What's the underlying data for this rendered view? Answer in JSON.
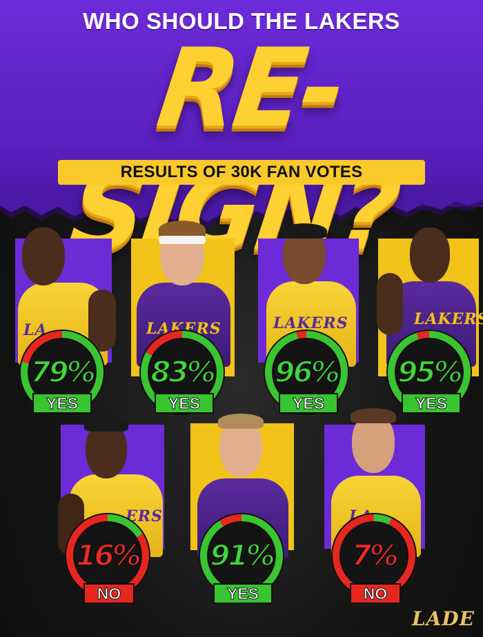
{
  "header": {
    "subtitle": "WHO SHOULD THE LAKERS",
    "headline": "RE-SIGN?",
    "results": "RESULTS OF 30K FAN VOTES"
  },
  "players": [
    {
      "percent": "79%",
      "verdict": "YES",
      "jersey_text": "LA"
    },
    {
      "percent": "83%",
      "verdict": "YES",
      "jersey_text": "LAKERS"
    },
    {
      "percent": "96%",
      "verdict": "YES",
      "jersey_text": "LAKERS"
    },
    {
      "percent": "95%",
      "verdict": "YES",
      "jersey_text": "LAKERS"
    },
    {
      "percent": "16%",
      "verdict": "NO",
      "jersey_text": "ERS"
    },
    {
      "percent": "91%",
      "verdict": "YES",
      "jersey_text": ""
    },
    {
      "percent": "7%",
      "verdict": "NO",
      "jersey_text": "LA"
    }
  ],
  "vote_share": [
    0.79,
    0.83,
    0.96,
    0.95,
    0.16,
    0.91,
    0.07
  ],
  "watermark": "LADE",
  "colors": {
    "purple": "#6c2bd6",
    "gold": "#fcd131",
    "yes_green": "#3fd63b",
    "no_red": "#ee2a24"
  }
}
